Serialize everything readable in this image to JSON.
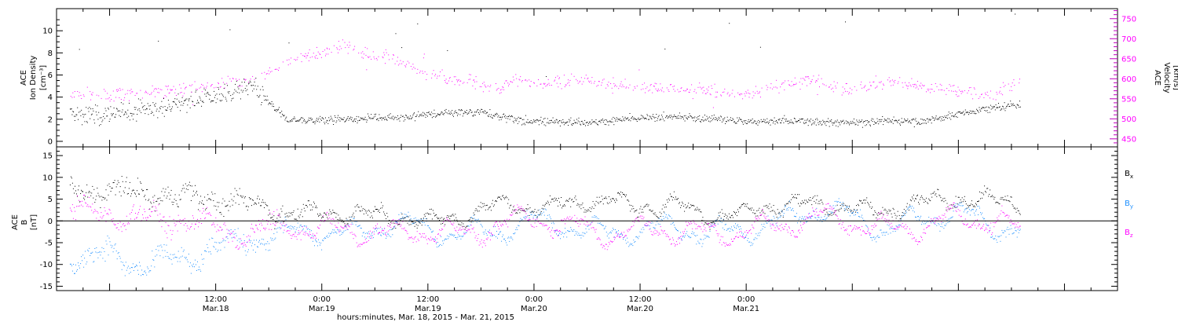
{
  "chart_data": [
    {
      "type": "scatter",
      "panel": "top",
      "ylabel_left": [
        "ACE",
        "Ion Density",
        "[cm⁻³]"
      ],
      "ylabel_right": [
        "ACE",
        "Velocity",
        "[km/s]"
      ],
      "ylim_left": [
        -0.5,
        12
      ],
      "ylim_right": [
        430,
        775
      ],
      "yticks_left": [
        "0",
        "2",
        "4",
        "6",
        "8",
        "10"
      ],
      "yticks_right": [
        "450",
        "500",
        "550",
        "600",
        "650",
        "700",
        "750"
      ],
      "series": [
        {
          "color": "#000000",
          "axis": "left",
          "points": [
            [
              0,
              2.5
            ],
            [
              6,
              3.2
            ],
            [
              12,
              4.2
            ],
            [
              16,
              5.1
            ],
            [
              20,
              2.0
            ],
            [
              24,
              1.9
            ],
            [
              28,
              2.1
            ],
            [
              33,
              2.2
            ],
            [
              38,
              2.6
            ],
            [
              42,
              2.7
            ],
            [
              46,
              2.0
            ],
            [
              50,
              1.8
            ],
            [
              55,
              1.8
            ],
            [
              60,
              2.1
            ],
            [
              64,
              2.2
            ],
            [
              68,
              2.1
            ],
            [
              72,
              1.8
            ],
            [
              76,
              1.9
            ],
            [
              80,
              1.8
            ],
            [
              84,
              1.7
            ],
            [
              88,
              1.9
            ],
            [
              92,
              1.8
            ],
            [
              96,
              2.5
            ],
            [
              100,
              3.1
            ],
            [
              103,
              3.3
            ]
          ]
        },
        {
          "color": "#ff00ff",
          "axis": "right",
          "points": [
            [
              0,
              560
            ],
            [
              6,
              568
            ],
            [
              12,
              585
            ],
            [
              16,
              600
            ],
            [
              18,
              615
            ],
            [
              20,
              645
            ],
            [
              24,
              665
            ],
            [
              26,
              680
            ],
            [
              29,
              665
            ],
            [
              32,
              655
            ],
            [
              35,
              620
            ],
            [
              38,
              600
            ],
            [
              42,
              590
            ],
            [
              44,
              570
            ],
            [
              46,
              600
            ],
            [
              48,
              580
            ],
            [
              52,
              600
            ],
            [
              56,
              590
            ],
            [
              60,
              578
            ],
            [
              64,
              575
            ],
            [
              68,
              570
            ],
            [
              72,
              560
            ],
            [
              76,
              585
            ],
            [
              80,
              600
            ],
            [
              83,
              570
            ],
            [
              86,
              585
            ],
            [
              89,
              595
            ],
            [
              92,
              580
            ],
            [
              96,
              570
            ],
            [
              100,
              560
            ],
            [
              103,
              600
            ]
          ]
        }
      ]
    },
    {
      "type": "scatter",
      "panel": "bottom",
      "ylabel_left": [
        "ACE",
        "B",
        "[nT]"
      ],
      "ylim": [
        -16,
        17
      ],
      "yticks": [
        "-15",
        "-10",
        "-5",
        "0",
        "5",
        "10",
        "15"
      ],
      "legend": [
        {
          "name": "Bx",
          "base": "B",
          "sub": "x",
          "color": "#000000"
        },
        {
          "name": "By",
          "base": "B",
          "sub": "y",
          "color": "#1e90ff"
        },
        {
          "name": "Bz",
          "base": "B",
          "sub": "z",
          "color": "#ff00ff"
        }
      ],
      "series": [
        {
          "name": "Bx",
          "color": "#000000",
          "points": [
            [
              0,
              7
            ],
            [
              6,
              6
            ],
            [
              12,
              5
            ],
            [
              16,
              4
            ],
            [
              20,
              2
            ],
            [
              24,
              1.5
            ],
            [
              28,
              2
            ],
            [
              32,
              1
            ],
            [
              36,
              0
            ],
            [
              40,
              1
            ],
            [
              44,
              4
            ],
            [
              48,
              3
            ],
            [
              52,
              4
            ],
            [
              56,
              5
            ],
            [
              60,
              3
            ],
            [
              64,
              4
            ],
            [
              68,
              1
            ],
            [
              72,
              2
            ],
            [
              76,
              4
            ],
            [
              80,
              4
            ],
            [
              84,
              3
            ],
            [
              88,
              2
            ],
            [
              92,
              5
            ],
            [
              96,
              5
            ],
            [
              100,
              5
            ],
            [
              103,
              4
            ]
          ]
        },
        {
          "name": "By",
          "color": "#1e90ff",
          "points": [
            [
              0,
              -8
            ],
            [
              4,
              -10
            ],
            [
              8,
              -9
            ],
            [
              12,
              -6
            ],
            [
              16,
              -4
            ],
            [
              20,
              -3
            ],
            [
              24,
              -2
            ],
            [
              28,
              -3
            ],
            [
              32,
              0
            ],
            [
              36,
              -2
            ],
            [
              40,
              -3
            ],
            [
              44,
              -2
            ],
            [
              48,
              0
            ],
            [
              52,
              -1
            ],
            [
              56,
              -3
            ],
            [
              60,
              -2
            ],
            [
              64,
              -1
            ],
            [
              68,
              -3
            ],
            [
              72,
              -2
            ],
            [
              76,
              0
            ],
            [
              80,
              3
            ],
            [
              84,
              1
            ],
            [
              88,
              -2
            ],
            [
              92,
              1
            ],
            [
              96,
              2
            ],
            [
              100,
              -1
            ],
            [
              103,
              -2
            ]
          ]
        },
        {
          "name": "Bz",
          "color": "#ff00ff",
          "points": [
            [
              0,
              2
            ],
            [
              4,
              0
            ],
            [
              8,
              1
            ],
            [
              12,
              -2
            ],
            [
              16,
              -3
            ],
            [
              20,
              -1
            ],
            [
              24,
              -2
            ],
            [
              28,
              -2
            ],
            [
              32,
              -3
            ],
            [
              36,
              -2
            ],
            [
              40,
              -3
            ],
            [
              44,
              -1
            ],
            [
              48,
              1
            ],
            [
              52,
              -1
            ],
            [
              56,
              -3
            ],
            [
              60,
              -2
            ],
            [
              64,
              -2
            ],
            [
              68,
              -3
            ],
            [
              72,
              -2
            ],
            [
              76,
              -1
            ],
            [
              80,
              1
            ],
            [
              84,
              0
            ],
            [
              88,
              -2
            ],
            [
              92,
              -1
            ],
            [
              96,
              1
            ],
            [
              100,
              0
            ],
            [
              103,
              -2
            ]
          ]
        }
      ]
    }
  ],
  "xaxis": {
    "xlim": [
      -6,
      114
    ],
    "unit": "hours from 0:00 Mar.18, 2015",
    "ticks": [
      {
        "x": 12,
        "time": "12:00",
        "date": "Mar.18"
      },
      {
        "x": 24,
        "time": "0:00",
        "date": "Mar.19"
      },
      {
        "x": 36,
        "time": "12:00",
        "date": "Mar.19"
      },
      {
        "x": 48,
        "time": "0:00",
        "date": "Mar.20"
      },
      {
        "x": 60,
        "time": "12:00",
        "date": "Mar.20"
      },
      {
        "x": 72,
        "time": "0:00",
        "date": "Mar.21"
      }
    ],
    "title": "hours:minutes, Mar. 18, 2015 - Mar. 21, 2015"
  }
}
